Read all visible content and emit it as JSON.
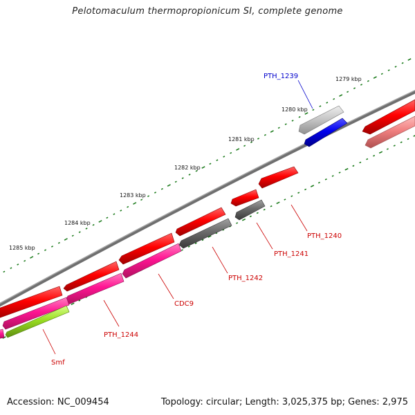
{
  "title": "Pelotomaculum thermopropionicum SI, complete genome",
  "accession_label": "Accession: NC_009454",
  "summary_label": "Topology: circular; Length: 3,025,375 bp; Genes: 2,975",
  "kbp_labels": [
    "1279 kbp",
    "1280 kbp",
    "1281 kbp",
    "1282 kbp",
    "1283 kbp",
    "1284 kbp",
    "1285 kbp"
  ],
  "gene_labels": [
    {
      "name": "PTH_1239",
      "color": "#0000cc"
    },
    {
      "name": "PTH_1240",
      "color": "#cc0000"
    },
    {
      "name": "PTH_1241",
      "color": "#cc0000"
    },
    {
      "name": "PTH_1242",
      "color": "#cc0000"
    },
    {
      "name": "CDC9",
      "color": "#cc0000"
    },
    {
      "name": "PTH_1244",
      "color": "#cc0000"
    },
    {
      "name": "Smf",
      "color": "#cc0000"
    }
  ],
  "colors": {
    "backbone": "#7a7a7a",
    "tick": "#1a7a1a",
    "cds_red": "#ff0000",
    "cds_pink": "#ff1a8c",
    "cds_grey": "#6e6e6e",
    "cds_light_grey": "#c8c8c8",
    "cds_blue": "#0000ee",
    "cds_salmon": "#f08080",
    "cds_lime": "#99dd22"
  }
}
